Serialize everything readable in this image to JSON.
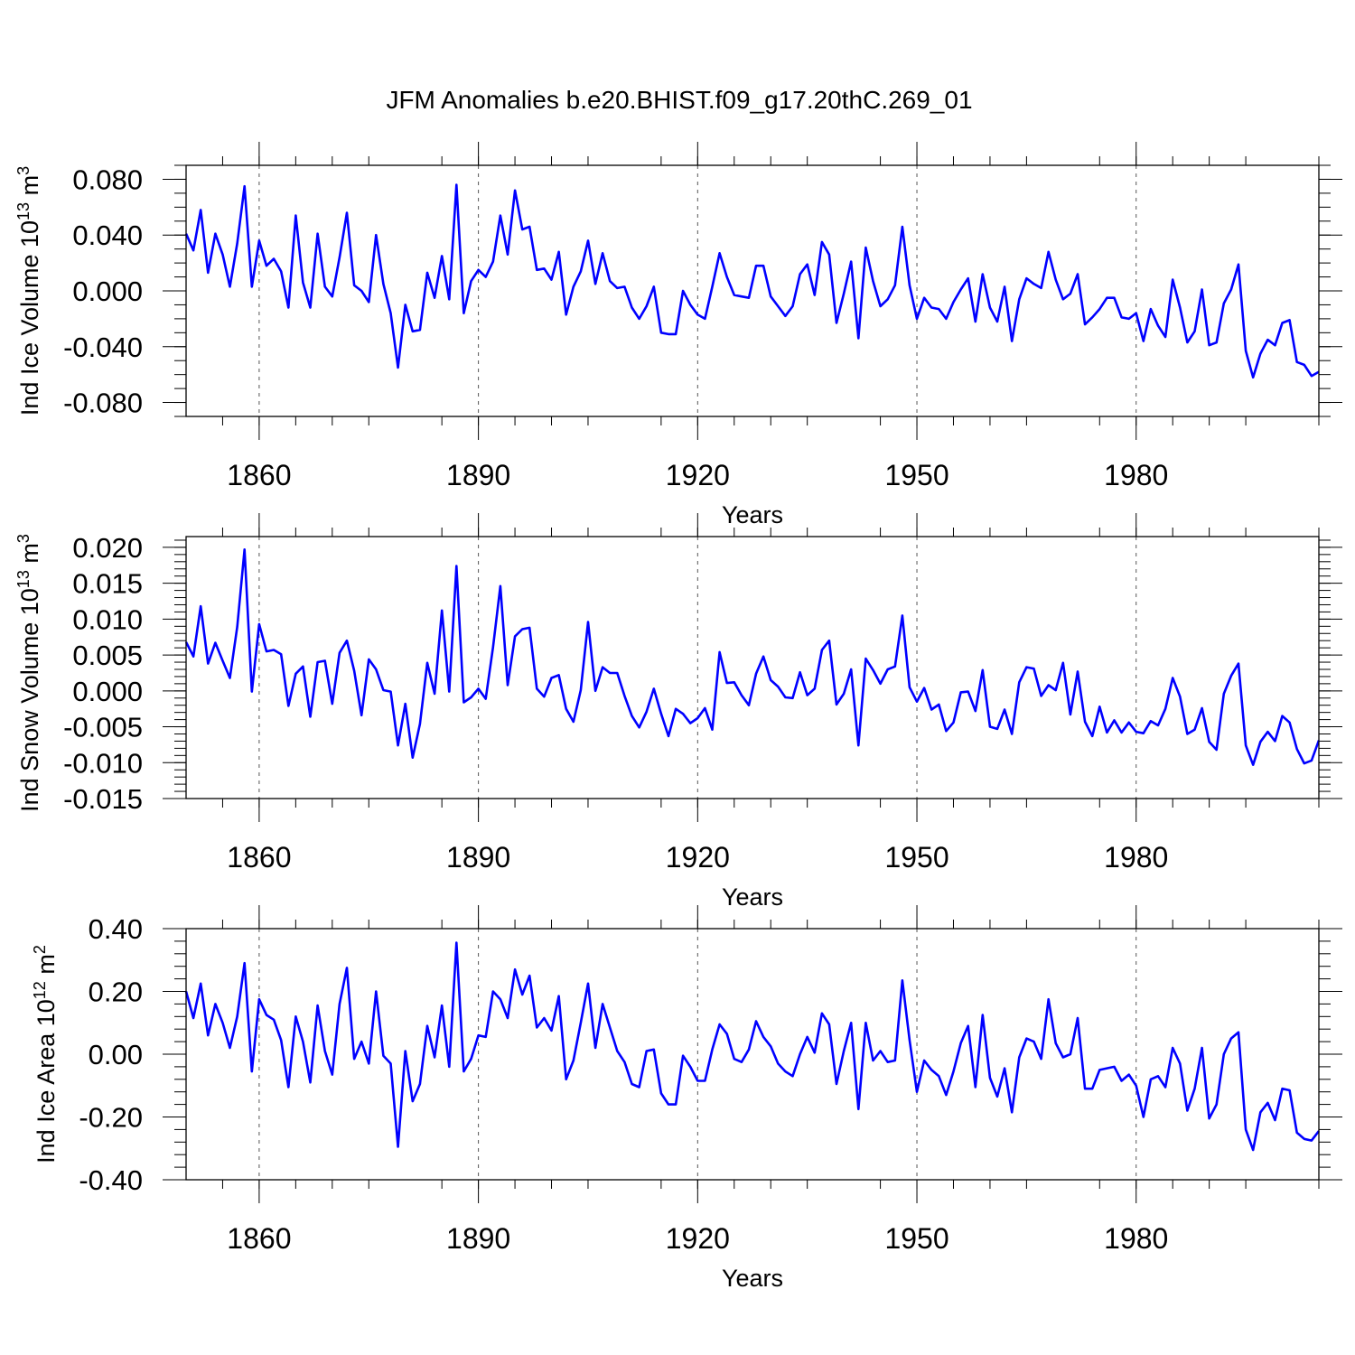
{
  "title": "JFM Anomalies b.e20.BHIST.f09_g17.20thC.269_01",
  "colors": {
    "line": "#0000ff",
    "axis": "#000000",
    "grid": "#555555"
  },
  "chart_data": [
    {
      "type": "line",
      "ylabel_main": "Ind Ice Volume 10",
      "ylabel_exp": "13",
      "ylabel_unit": " m",
      "ylabel_unit_exp": "3",
      "xlabel": "Years",
      "xlim": [
        1850,
        2005
      ],
      "ylim": [
        -0.09,
        0.09
      ],
      "xticks": [
        1860,
        1890,
        1920,
        1950,
        1980
      ],
      "xtick_labels": [
        "1860",
        "1890",
        "1920",
        "1950",
        "1980"
      ],
      "yticks": [
        0.08,
        0.04,
        0.0,
        -0.04,
        -0.08
      ],
      "ytick_labels": [
        "0.080",
        "0.040",
        "0.000",
        "-0.040",
        "-0.080"
      ],
      "yminor_step": 0.01,
      "x_start": 1850,
      "values": [
        0.041,
        0.029,
        0.058,
        0.013,
        0.041,
        0.026,
        0.003,
        0.034,
        0.075,
        0.003,
        0.036,
        0.018,
        0.023,
        0.014,
        -0.012,
        0.054,
        0.006,
        -0.012,
        0.041,
        0.003,
        -0.004,
        0.024,
        0.056,
        0.004,
        0.0,
        -0.008,
        0.04,
        0.005,
        -0.016,
        -0.055,
        -0.01,
        -0.029,
        -0.028,
        0.013,
        -0.005,
        0.025,
        -0.006,
        0.076,
        -0.016,
        0.007,
        0.015,
        0.01,
        0.021,
        0.054,
        0.026,
        0.072,
        0.044,
        0.046,
        0.015,
        0.016,
        0.008,
        0.028,
        -0.017,
        0.003,
        0.014,
        0.036,
        0.005,
        0.027,
        0.007,
        0.002,
        0.003,
        -0.012,
        -0.02,
        -0.011,
        0.003,
        -0.03,
        -0.031,
        -0.031,
        0.0,
        -0.01,
        -0.017,
        -0.02,
        0.003,
        0.027,
        0.01,
        -0.003,
        -0.004,
        -0.005,
        0.018,
        0.018,
        -0.004,
        -0.011,
        -0.018,
        -0.011,
        0.012,
        0.019,
        -0.003,
        0.035,
        0.026,
        -0.023,
        -0.002,
        0.021,
        -0.034,
        0.031,
        0.007,
        -0.011,
        -0.006,
        0.004,
        0.046,
        0.004,
        -0.02,
        -0.005,
        -0.012,
        -0.013,
        -0.02,
        -0.008,
        0.001,
        0.009,
        -0.022,
        0.012,
        -0.012,
        -0.022,
        0.003,
        -0.036,
        -0.006,
        0.009,
        0.005,
        0.002,
        0.028,
        0.008,
        -0.006,
        -0.002,
        0.012,
        -0.024,
        -0.019,
        -0.013,
        -0.005,
        -0.005,
        -0.019,
        -0.02,
        -0.016,
        -0.036,
        -0.013,
        -0.025,
        -0.033,
        0.008,
        -0.012,
        -0.037,
        -0.029,
        0.001,
        -0.039,
        -0.037,
        -0.009,
        0.001,
        0.019,
        -0.043,
        -0.062,
        -0.045,
        -0.035,
        -0.039,
        -0.023,
        -0.021,
        -0.051,
        -0.053,
        -0.061,
        -0.058
      ]
    },
    {
      "type": "line",
      "ylabel_main": "Ind Snow Volume 10",
      "ylabel_exp": "13",
      "ylabel_unit": " m",
      "ylabel_unit_exp": "3",
      "xlabel": "Years",
      "xlim": [
        1850,
        2005
      ],
      "ylim": [
        -0.015,
        0.0215
      ],
      "xticks": [
        1860,
        1890,
        1920,
        1950,
        1980
      ],
      "xtick_labels": [
        "1860",
        "1890",
        "1920",
        "1950",
        "1980"
      ],
      "yticks": [
        0.02,
        0.015,
        0.01,
        0.005,
        0.0,
        -0.005,
        -0.01,
        -0.015
      ],
      "ytick_labels": [
        "0.020",
        "0.015",
        "0.010",
        "0.005",
        "0.000",
        "-0.005",
        "-0.010",
        "-0.015"
      ],
      "yminor_step": 0.001,
      "x_start": 1850,
      "values": [
        0.0068,
        0.0048,
        0.0118,
        0.0038,
        0.0067,
        0.0042,
        0.0018,
        0.0089,
        0.0197,
        -0.0001,
        0.0093,
        0.0055,
        0.0057,
        0.0051,
        -0.0021,
        0.0024,
        0.0034,
        -0.0036,
        0.004,
        0.0042,
        -0.0018,
        0.0053,
        0.007,
        0.0028,
        -0.0034,
        0.0044,
        0.003,
        0.0001,
        -0.0001,
        -0.0076,
        -0.0018,
        -0.0093,
        -0.0046,
        0.0039,
        -0.0004,
        0.0112,
        -0.0001,
        0.0174,
        -0.0016,
        -0.0009,
        0.0003,
        -0.0011,
        0.0061,
        0.0146,
        0.0008,
        0.0076,
        0.0086,
        0.0088,
        0.0003,
        -0.0008,
        0.0018,
        0.0022,
        -0.0025,
        -0.0043,
        0.0001,
        0.0096,
        0.0,
        0.0033,
        0.0025,
        0.0025,
        -0.0007,
        -0.0035,
        -0.0051,
        -0.0029,
        0.0003,
        -0.0032,
        -0.0063,
        -0.0025,
        -0.0032,
        -0.0045,
        -0.0038,
        -0.0024,
        -0.0054,
        0.0054,
        0.0011,
        0.0012,
        -0.0006,
        -0.002,
        0.0024,
        0.0048,
        0.0015,
        0.0006,
        -0.0009,
        -0.001,
        0.0026,
        -0.0006,
        0.0003,
        0.0057,
        0.007,
        -0.0019,
        -0.0004,
        0.003,
        -0.0076,
        0.0045,
        0.0029,
        0.001,
        0.003,
        0.0034,
        0.0105,
        0.0005,
        -0.0015,
        0.0004,
        -0.0026,
        -0.0019,
        -0.0056,
        -0.0044,
        -0.0002,
        -0.0001,
        -0.0028,
        0.0029,
        -0.005,
        -0.0053,
        -0.0026,
        -0.006,
        0.0012,
        0.0033,
        0.0031,
        -0.0007,
        0.0008,
        0.0001,
        0.0039,
        -0.0033,
        0.0027,
        -0.0043,
        -0.0063,
        -0.0022,
        -0.0058,
        -0.0041,
        -0.0058,
        -0.0044,
        -0.0057,
        -0.0059,
        -0.0042,
        -0.0048,
        -0.0025,
        0.0018,
        -0.0008,
        -0.006,
        -0.0054,
        -0.0024,
        -0.0071,
        -0.0082,
        -0.0004,
        0.0021,
        0.0038,
        -0.0076,
        -0.0103,
        -0.0071,
        -0.0057,
        -0.007,
        -0.0035,
        -0.0044,
        -0.0081,
        -0.0101,
        -0.0097,
        -0.0069
      ]
    },
    {
      "type": "line",
      "ylabel_main": "Ind Ice Area 10",
      "ylabel_exp": "12",
      "ylabel_unit": " m",
      "ylabel_unit_exp": "2",
      "xlabel": "Years",
      "xlim": [
        1850,
        2005
      ],
      "ylim": [
        -0.4,
        0.4
      ],
      "xticks": [
        1860,
        1890,
        1920,
        1950,
        1980
      ],
      "xtick_labels": [
        "1860",
        "1890",
        "1920",
        "1950",
        "1980"
      ],
      "yticks": [
        0.4,
        0.2,
        0.0,
        -0.2,
        -0.4
      ],
      "ytick_labels": [
        "0.40",
        "0.20",
        "0.00",
        "-0.20",
        "-0.40"
      ],
      "yminor_step": 0.04,
      "x_start": 1850,
      "values": [
        0.2,
        0.115,
        0.225,
        0.06,
        0.16,
        0.1,
        0.02,
        0.12,
        0.29,
        -0.055,
        0.175,
        0.125,
        0.11,
        0.045,
        -0.105,
        0.12,
        0.04,
        -0.09,
        0.155,
        0.01,
        -0.065,
        0.16,
        0.275,
        -0.015,
        0.04,
        -0.03,
        0.2,
        -0.005,
        -0.03,
        -0.295,
        0.01,
        -0.15,
        -0.095,
        0.09,
        -0.01,
        0.155,
        -0.04,
        0.355,
        -0.055,
        -0.015,
        0.06,
        0.055,
        0.2,
        0.175,
        0.115,
        0.27,
        0.19,
        0.25,
        0.085,
        0.115,
        0.075,
        0.185,
        -0.08,
        -0.02,
        0.1,
        0.225,
        0.02,
        0.16,
        0.085,
        0.01,
        -0.025,
        -0.095,
        -0.105,
        0.01,
        0.015,
        -0.125,
        -0.16,
        -0.16,
        -0.005,
        -0.04,
        -0.085,
        -0.085,
        0.015,
        0.095,
        0.065,
        -0.015,
        -0.025,
        0.015,
        0.105,
        0.055,
        0.025,
        -0.03,
        -0.055,
        -0.07,
        0.0,
        0.055,
        0.005,
        0.13,
        0.095,
        -0.095,
        0.01,
        0.1,
        -0.175,
        0.1,
        -0.02,
        0.01,
        -0.025,
        -0.02,
        0.235,
        0.045,
        -0.12,
        -0.02,
        -0.05,
        -0.07,
        -0.13,
        -0.055,
        0.035,
        0.09,
        -0.105,
        0.125,
        -0.075,
        -0.135,
        -0.045,
        -0.185,
        -0.01,
        0.05,
        0.04,
        -0.015,
        0.175,
        0.035,
        -0.01,
        0.0,
        0.115,
        -0.11,
        -0.11,
        -0.05,
        -0.045,
        -0.04,
        -0.085,
        -0.065,
        -0.1,
        -0.2,
        -0.08,
        -0.07,
        -0.105,
        0.02,
        -0.03,
        -0.18,
        -0.11,
        0.02,
        -0.205,
        -0.16,
        0.0,
        0.05,
        0.07,
        -0.24,
        -0.305,
        -0.185,
        -0.155,
        -0.21,
        -0.11,
        -0.115,
        -0.25,
        -0.27,
        -0.275,
        -0.245
      ]
    }
  ]
}
